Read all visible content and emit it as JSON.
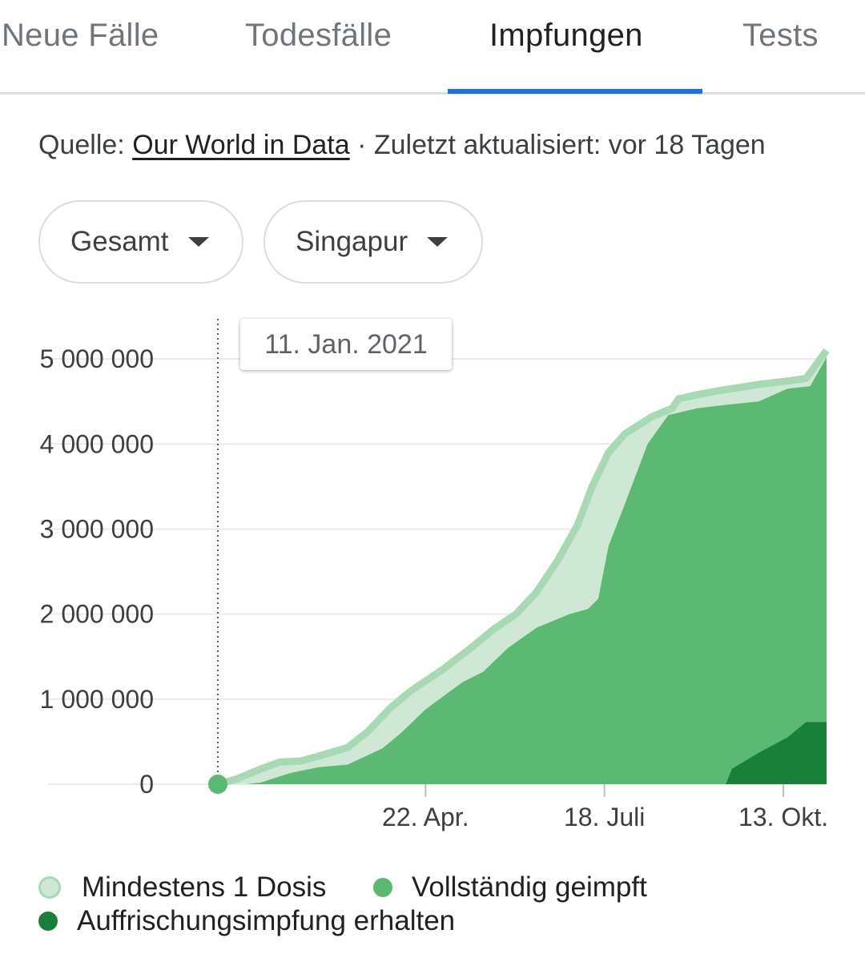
{
  "tabs": [
    {
      "label": "Neue Fälle",
      "active": false
    },
    {
      "label": "Todesfälle",
      "active": false
    },
    {
      "label": "Impfungen",
      "active": true
    },
    {
      "label": "Tests",
      "active": false
    }
  ],
  "source": {
    "prefix": "Quelle: ",
    "link_text": "Our World in Data",
    "suffix": " · Zuletzt aktualisiert: vor 18 Tagen"
  },
  "dropdowns": {
    "metric": "Gesamt",
    "region": "Singapur"
  },
  "tooltip": {
    "date": "11. Jan. 2021"
  },
  "colors": {
    "accent": "#1a73e8",
    "first_dose_fill": "#cfe8d6",
    "first_dose_line": "#a7d9b4",
    "fully_vaccinated": "#5bb974",
    "booster": "#188038"
  },
  "legend": {
    "first_dose": "Mindestens 1 Dosis",
    "fully_vaccinated": "Vollständig geimpft",
    "booster": "Auffrischungsimpfung erhalten"
  },
  "chart_data": {
    "type": "area",
    "y_ticks": [
      "0",
      "1 000 000",
      "2 000 000",
      "3 000 000",
      "4 000 000",
      "5 000 000"
    ],
    "ylim": [
      0,
      5500000
    ],
    "x_ticks": [
      {
        "label": "22. Apr.",
        "date": "2021-04-22"
      },
      {
        "label": "18. Juli",
        "date": "2021-07-18"
      },
      {
        "label": "13. Okt.",
        "date": "2021-10-13"
      }
    ],
    "x_range": [
      "2021-01-11",
      "2021-11-03"
    ],
    "selected_date": "2021-01-11",
    "grid": true,
    "legend_position": "bottom",
    "series": [
      {
        "name": "Mindestens 1 Dosis",
        "points": [
          [
            "2021-01-11",
            0
          ],
          [
            "2021-01-20",
            60000
          ],
          [
            "2021-02-01",
            180000
          ],
          [
            "2021-02-10",
            260000
          ],
          [
            "2021-02-20",
            270000
          ],
          [
            "2021-03-01",
            330000
          ],
          [
            "2021-03-15",
            430000
          ],
          [
            "2021-03-25",
            620000
          ],
          [
            "2021-04-05",
            900000
          ],
          [
            "2021-04-15",
            1100000
          ],
          [
            "2021-05-01",
            1360000
          ],
          [
            "2021-05-15",
            1620000
          ],
          [
            "2021-05-25",
            1820000
          ],
          [
            "2021-06-05",
            2000000
          ],
          [
            "2021-06-15",
            2260000
          ],
          [
            "2021-06-25",
            2620000
          ],
          [
            "2021-07-05",
            3050000
          ],
          [
            "2021-07-12",
            3500000
          ],
          [
            "2021-07-20",
            3900000
          ],
          [
            "2021-07-28",
            4120000
          ],
          [
            "2021-08-10",
            4320000
          ],
          [
            "2021-08-20",
            4420000
          ],
          [
            "2021-08-23",
            4530000
          ],
          [
            "2021-09-01",
            4580000
          ],
          [
            "2021-09-15",
            4640000
          ],
          [
            "2021-10-01",
            4700000
          ],
          [
            "2021-10-15",
            4740000
          ],
          [
            "2021-10-24",
            4770000
          ],
          [
            "2021-11-03",
            5100000
          ]
        ]
      },
      {
        "name": "Vollständig geimpft",
        "points": [
          [
            "2021-01-11",
            0
          ],
          [
            "2021-01-25",
            0
          ],
          [
            "2021-02-01",
            20000
          ],
          [
            "2021-02-15",
            130000
          ],
          [
            "2021-03-01",
            200000
          ],
          [
            "2021-03-15",
            230000
          ],
          [
            "2021-04-01",
            420000
          ],
          [
            "2021-04-10",
            600000
          ],
          [
            "2021-04-22",
            880000
          ],
          [
            "2021-05-10",
            1200000
          ],
          [
            "2021-05-20",
            1320000
          ],
          [
            "2021-06-01",
            1600000
          ],
          [
            "2021-06-15",
            1840000
          ],
          [
            "2021-07-01",
            2000000
          ],
          [
            "2021-07-10",
            2060000
          ],
          [
            "2021-07-15",
            2180000
          ],
          [
            "2021-07-20",
            2800000
          ],
          [
            "2021-07-28",
            3300000
          ],
          [
            "2021-08-08",
            4000000
          ],
          [
            "2021-08-18",
            4340000
          ],
          [
            "2021-09-01",
            4420000
          ],
          [
            "2021-09-15",
            4460000
          ],
          [
            "2021-10-01",
            4500000
          ],
          [
            "2021-10-15",
            4650000
          ],
          [
            "2021-10-26",
            4680000
          ],
          [
            "2021-11-03",
            5020000
          ]
        ]
      },
      {
        "name": "Auffrischungsimpfung erhalten",
        "points": [
          [
            "2021-09-15",
            0
          ],
          [
            "2021-09-18",
            180000
          ],
          [
            "2021-10-01",
            370000
          ],
          [
            "2021-10-15",
            550000
          ],
          [
            "2021-10-24",
            730000
          ],
          [
            "2021-11-03",
            730000
          ]
        ]
      }
    ]
  }
}
